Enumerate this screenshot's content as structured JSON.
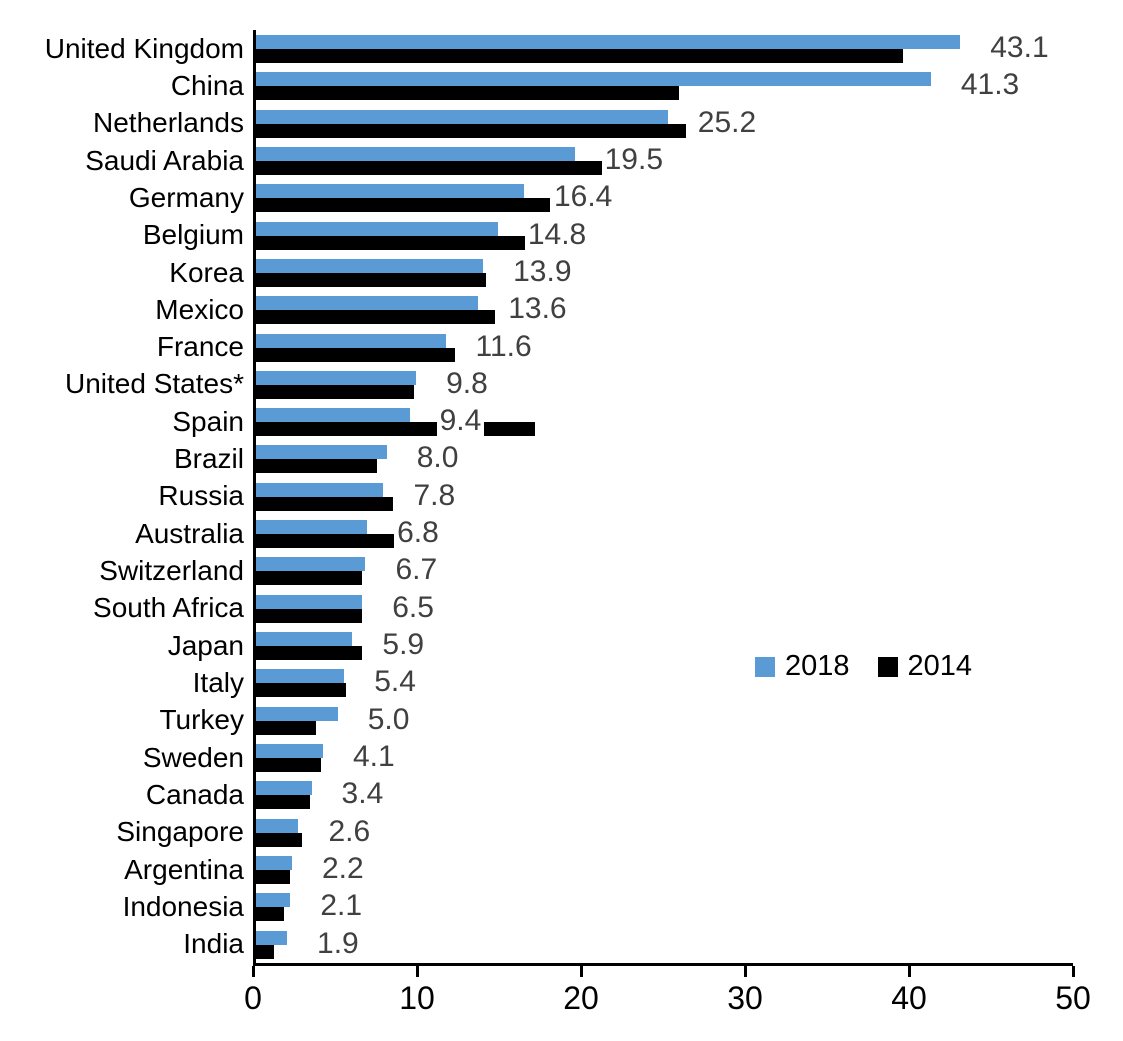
{
  "chart_data": {
    "type": "bar",
    "orientation": "horizontal",
    "title": "",
    "xlabel": "",
    "ylabel": "",
    "xlim": [
      0,
      50
    ],
    "x_ticks": [
      "0",
      "10",
      "20",
      "30",
      "40",
      "50"
    ],
    "grid": false,
    "legend_position": "middle-right",
    "categories": [
      "United Kingdom",
      "China",
      "Netherlands",
      "Saudi Arabia",
      "Germany",
      "Belgium",
      "Korea",
      "Mexico",
      "France",
      "United States*",
      "Spain",
      "Brazil",
      "Russia",
      "Australia",
      "Switzerland",
      "South Africa",
      "Japan",
      "Italy",
      "Turkey",
      "Sweden",
      "Canada",
      "Singapore",
      "Argentina",
      "Indonesia",
      "India"
    ],
    "series": [
      {
        "name": "2018",
        "color": "#5B9BD5",
        "values": [
          43.1,
          41.3,
          25.2,
          19.5,
          16.4,
          14.8,
          13.9,
          13.6,
          11.6,
          9.8,
          9.4,
          8.0,
          7.8,
          6.8,
          6.7,
          6.5,
          5.9,
          5.4,
          5.0,
          4.1,
          3.4,
          2.6,
          2.2,
          2.1,
          1.9
        ]
      },
      {
        "name": "2014",
        "color": "#000000",
        "values": [
          39.6,
          25.9,
          26.3,
          21.4,
          18.0,
          17.0,
          14.1,
          14.6,
          12.2,
          9.7,
          17.1,
          7.4,
          8.4,
          9.7,
          6.5,
          6.5,
          6.5,
          5.5,
          3.7,
          4.0,
          3.3,
          2.8,
          2.1,
          1.7,
          1.1
        ]
      }
    ],
    "data_labels": {
      "series": "2018",
      "color": "#404040",
      "values": [
        "43.1",
        "41.3",
        "25.2",
        "19.5",
        "16.4",
        "14.8",
        "13.9",
        "13.6",
        "11.6",
        "9.8",
        "9.4",
        "8.0",
        "7.8",
        "6.8",
        "6.7",
        "6.5",
        "5.9",
        "5.4",
        "5.0",
        "4.1",
        "3.4",
        "2.6",
        "2.2",
        "2.1",
        "1.9"
      ]
    },
    "axis_color": "#000000",
    "background_color": "#FFFFFF"
  }
}
